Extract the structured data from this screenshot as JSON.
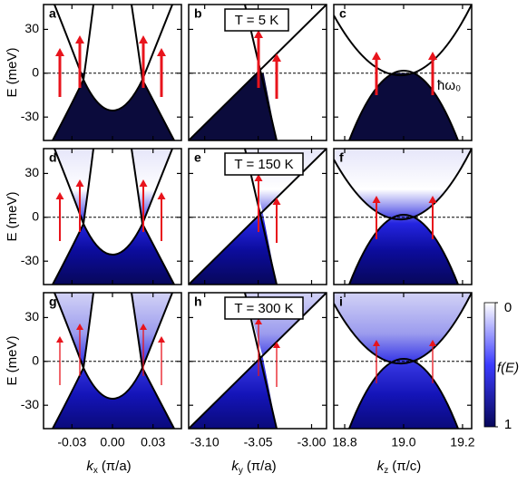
{
  "chart_data": {
    "type": "band-panels",
    "columns": [
      {
        "xlabel": {
          "symbol": "k",
          "subscript": "x",
          "unit": "(π/a)"
        },
        "xlim": [
          -0.051,
          0.051
        ],
        "xticks": [
          -0.03,
          {
            "value": 0,
            "label": "0.00"
          },
          0.03
        ]
      },
      {
        "xlabel": {
          "symbol": "k",
          "subscript": "y",
          "unit": "(π/a)"
        },
        "xlim": [
          -3.115,
          -2.986
        ],
        "xticks": [
          {
            "value": -3.1,
            "label": "-3.10"
          },
          -3.05,
          {
            "value": -3,
            "label": "-3.00"
          }
        ]
      },
      {
        "xlabel": {
          "symbol": "k",
          "subscript": "z",
          "unit": "(π/c)"
        },
        "xlim": [
          18.763,
          19.231
        ],
        "xticks": [
          18.8,
          {
            "value": 19,
            "label": "19.0"
          },
          19.2
        ]
      }
    ],
    "rows": [
      {
        "panels": [
          "a",
          "b",
          "c"
        ],
        "temperature": "T = 5 K",
        "ylabel": "E (meV)",
        "ylim": [
          -46,
          47
        ],
        "yticks": [
          30,
          0,
          -30
        ]
      },
      {
        "panels": [
          "d",
          "e",
          "f"
        ],
        "temperature": "T = 150 K",
        "ylabel": "E (meV)",
        "ylim": [
          -46,
          47
        ],
        "yticks": [
          30,
          0,
          -30
        ]
      },
      {
        "panels": [
          "g",
          "h",
          "i"
        ],
        "temperature": "T = 300 K",
        "ylabel": "E (meV)",
        "ylim": [
          -46,
          47
        ],
        "yticks": [
          30,
          0,
          -30
        ]
      }
    ],
    "reference_line": 0,
    "annotation": "ħω₀",
    "colorbar": {
      "label": "f(E)",
      "lim": [
        0,
        1
      ],
      "ticks": [
        0,
        1
      ]
    }
  }
}
